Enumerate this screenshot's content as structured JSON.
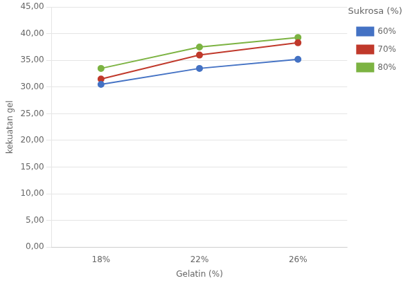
{
  "chart_data": {
    "type": "line",
    "categories": [
      "18%",
      "22%",
      "26%"
    ],
    "series": [
      {
        "name": "60%",
        "color": "#4472C4",
        "marker": "circle",
        "values": [
          30.5,
          33.5,
          35.2
        ]
      },
      {
        "name": "70%",
        "color": "#C0392B",
        "marker": "circle",
        "values": [
          31.5,
          36.0,
          38.3
        ]
      },
      {
        "name": "80%",
        "color": "#7CB342",
        "marker": "circle",
        "values": [
          33.5,
          37.5,
          39.3
        ]
      }
    ],
    "xlabel": "Gelatin (%)",
    "ylabel": "kekuatan gel",
    "legend_title": "Sukrosa (%)",
    "legend": "right",
    "ylim": [
      0,
      45
    ],
    "yticks": [
      {
        "value": 0,
        "label": "0,00"
      },
      {
        "value": 5,
        "label": "5,00"
      },
      {
        "value": 10,
        "label": "10,00"
      },
      {
        "value": 15,
        "label": "15,00"
      },
      {
        "value": 20,
        "label": "20,00"
      },
      {
        "value": 25,
        "label": "25,00"
      },
      {
        "value": 30,
        "label": "30,00"
      },
      {
        "value": 35,
        "label": "35,00"
      },
      {
        "value": 40,
        "label": "40,00"
      },
      {
        "value": 45,
        "label": "45,00"
      }
    ],
    "grid": true
  }
}
